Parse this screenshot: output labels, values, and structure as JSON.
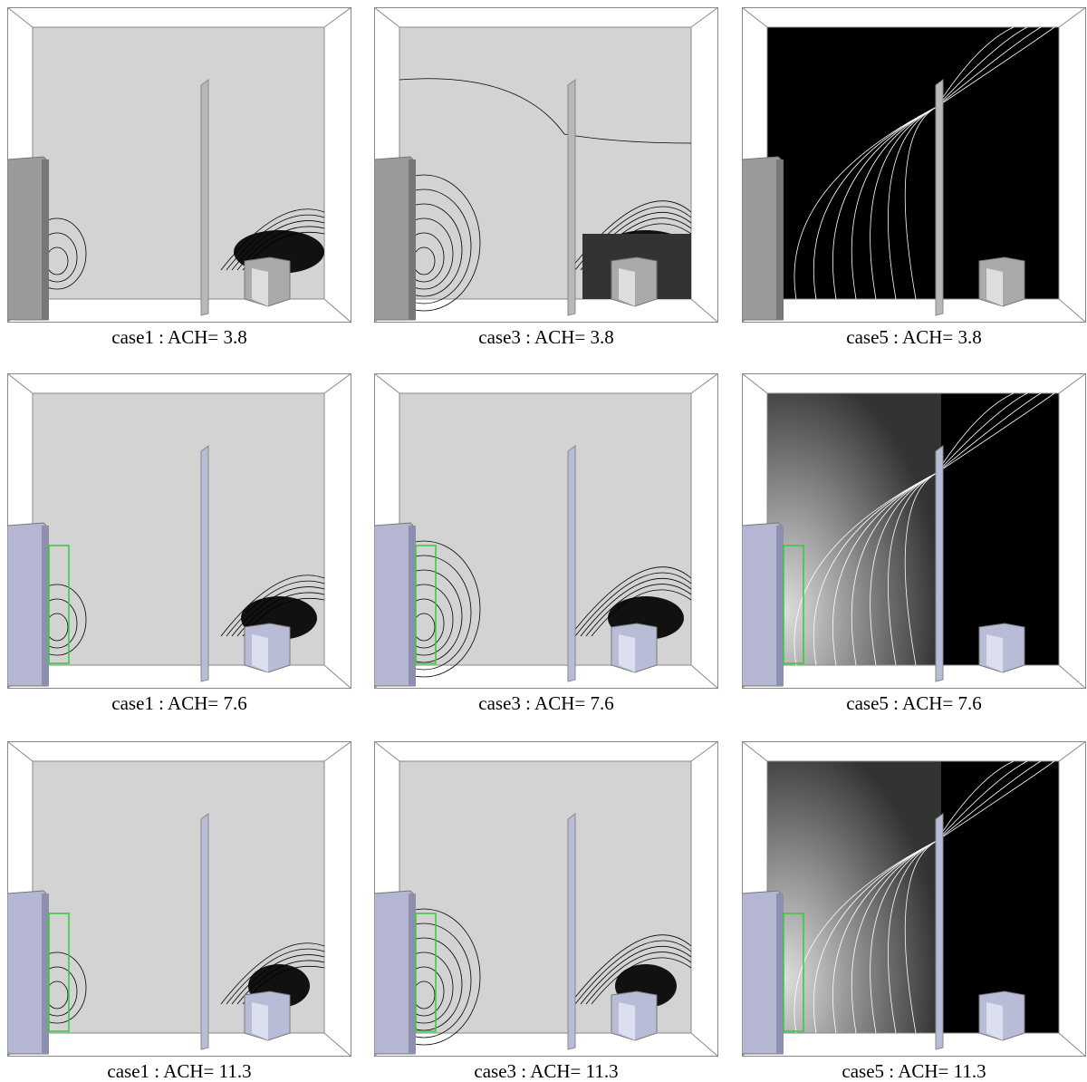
{
  "panels": [
    {
      "caption": "case1 : ACH= 3.8"
    },
    {
      "caption": "case3 : ACH= 3.8"
    },
    {
      "caption": "case5 : ACH= 3.8"
    },
    {
      "caption": "case1 : ACH= 7.6"
    },
    {
      "caption": "case3 : ACH= 7.6"
    },
    {
      "caption": "case5 : ACH= 7.6"
    },
    {
      "caption": "case1 : ACH= 11.3"
    },
    {
      "caption": "case3 : ACH= 11.3"
    },
    {
      "caption": "case5 : ACH= 11.3"
    }
  ]
}
